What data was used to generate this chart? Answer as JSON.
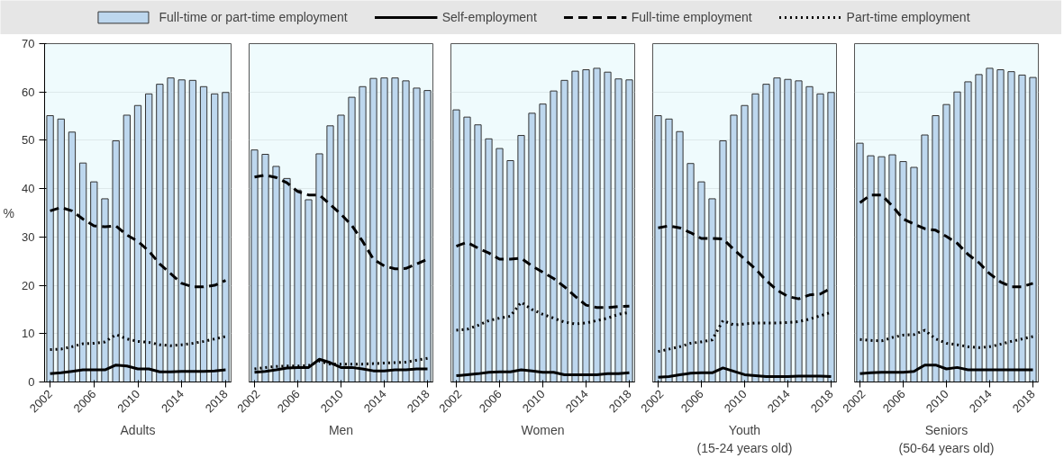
{
  "chart_data": [
    {
      "type": "bar",
      "xlabel": "Adults",
      "ylabel": "%",
      "legend": "top",
      "grid": "y",
      "xlim": [
        2001.5,
        2018.5
      ],
      "xticks": [
        2002,
        2006,
        2010,
        2014,
        2018
      ],
      "ylim": [
        0,
        70
      ],
      "yticks": [
        0,
        10,
        20,
        30,
        40,
        50,
        60,
        70
      ],
      "x": [
        2002,
        2003,
        2004,
        2005,
        2006,
        2007,
        2008,
        2009,
        2010,
        2011,
        2012,
        2013,
        2014,
        2015,
        2016,
        2017,
        2018
      ],
      "series": [
        {
          "name": "Full-time or part-time employment",
          "color": "#bdd7ee",
          "values": [
            55.1,
            54.4,
            51.7,
            45.3,
            41.4,
            37.9,
            49.9,
            55.2,
            57.2,
            59.6,
            61.6,
            62.9,
            62.5,
            62.4,
            61.1,
            59.6,
            59.9
          ]
        },
        {
          "type": "line",
          "name": "Self-employment",
          "color": "#000000",
          "line_style": "solid",
          "values": [
            1.7,
            1.9,
            2.2,
            2.5,
            2.5,
            2.5,
            3.5,
            3.3,
            2.7,
            2.7,
            2.1,
            2.1,
            2.2,
            2.2,
            2.2,
            2.3,
            2.5
          ]
        },
        {
          "type": "line",
          "name": "Full-time employment",
          "color": "#000000",
          "line_style": "dashed",
          "values": [
            35.4,
            36.1,
            35.4,
            33.7,
            32.3,
            32.1,
            32.3,
            30.4,
            29.1,
            27.1,
            24.4,
            22.4,
            20.4,
            19.7,
            19.7,
            20.0,
            21.0
          ]
        },
        {
          "type": "line",
          "name": "Part-time employment",
          "color": "#000000",
          "line_style": "dotted",
          "values": [
            6.7,
            6.8,
            7.3,
            7.9,
            8.0,
            8.3,
            9.8,
            8.9,
            8.4,
            8.2,
            7.7,
            7.5,
            7.7,
            8.0,
            8.4,
            8.9,
            9.4
          ]
        }
      ]
    },
    {
      "type": "bar",
      "xlabel": "Men",
      "grid": "y",
      "tick_labels": "x",
      "xlim": [
        2001.5,
        2018.5
      ],
      "xticks": [
        2002,
        2006,
        2010,
        2014,
        2018
      ],
      "ylim": [
        0,
        70
      ],
      "yticks": [
        0,
        10,
        20,
        30,
        40,
        50,
        60,
        70
      ],
      "x": [
        2002,
        2003,
        2004,
        2005,
        2006,
        2007,
        2008,
        2009,
        2010,
        2011,
        2012,
        2013,
        2014,
        2015,
        2016,
        2017,
        2018
      ],
      "series": [
        {
          "type": "bar",
          "color": "#bdd7ee",
          "values": [
            48.0,
            47.1,
            44.6,
            42.1,
            39.7,
            37.7,
            47.2,
            53.0,
            55.2,
            58.9,
            61.1,
            62.8,
            62.9,
            62.9,
            62.3,
            60.8,
            60.3
          ]
        },
        {
          "type": "line",
          "color": "#000000",
          "line_style": "solid",
          "values": [
            2.0,
            2.2,
            2.5,
            2.9,
            3.0,
            3.0,
            4.7,
            4.0,
            3.0,
            3.0,
            2.7,
            2.3,
            2.3,
            2.5,
            2.5,
            2.7,
            2.7
          ]
        },
        {
          "type": "line",
          "color": "#000000",
          "line_style": "dashed",
          "values": [
            42.4,
            42.8,
            42.3,
            41.2,
            39.4,
            38.7,
            38.7,
            36.7,
            34.7,
            32.4,
            29.1,
            25.4,
            24.0,
            23.4,
            23.5,
            24.4,
            25.4
          ]
        },
        {
          "type": "line",
          "color": "#000000",
          "line_style": "dotted",
          "values": [
            2.7,
            3.0,
            3.2,
            3.3,
            3.3,
            3.4,
            4.3,
            3.7,
            3.7,
            3.7,
            3.7,
            3.8,
            3.9,
            4.0,
            4.1,
            4.5,
            4.9
          ]
        }
      ]
    },
    {
      "type": "bar",
      "xlabel": "Women",
      "grid": "y",
      "tick_labels": "x",
      "xlim": [
        2001.5,
        2018.5
      ],
      "xticks": [
        2002,
        2006,
        2010,
        2014,
        2018
      ],
      "ylim": [
        0,
        70
      ],
      "yticks": [
        0,
        10,
        20,
        30,
        40,
        50,
        60,
        70
      ],
      "x": [
        2002,
        2003,
        2004,
        2005,
        2006,
        2007,
        2008,
        2009,
        2010,
        2011,
        2012,
        2013,
        2014,
        2015,
        2016,
        2017,
        2018
      ],
      "series": [
        {
          "type": "bar",
          "color": "#bdd7ee",
          "values": [
            56.3,
            54.8,
            53.2,
            50.3,
            48.3,
            45.8,
            51.0,
            55.6,
            57.5,
            60.2,
            62.4,
            64.3,
            64.6,
            64.9,
            64.1,
            62.7,
            62.5
          ]
        },
        {
          "type": "line",
          "color": "#000000",
          "line_style": "solid",
          "values": [
            1.3,
            1.5,
            1.7,
            2.0,
            2.1,
            2.1,
            2.5,
            2.3,
            2.0,
            2.0,
            1.5,
            1.5,
            1.5,
            1.5,
            1.7,
            1.7,
            1.9
          ]
        },
        {
          "type": "line",
          "color": "#000000",
          "line_style": "dashed",
          "values": [
            28.1,
            28.9,
            27.7,
            26.7,
            25.4,
            25.4,
            25.6,
            24.0,
            22.7,
            21.4,
            19.7,
            17.7,
            15.9,
            15.4,
            15.4,
            15.6,
            15.7
          ]
        },
        {
          "type": "line",
          "color": "#000000",
          "line_style": "dotted",
          "values": [
            10.7,
            10.9,
            11.7,
            12.7,
            13.2,
            13.6,
            16.5,
            15.0,
            14.0,
            13.2,
            12.4,
            12.0,
            12.2,
            12.7,
            13.2,
            14.0,
            14.4
          ]
        }
      ]
    },
    {
      "type": "bar",
      "xlabel": "Youth\n(15-24 years old)",
      "grid": "y",
      "tick_labels": "x",
      "xlim": [
        2001.5,
        2018.5
      ],
      "xticks": [
        2002,
        2006,
        2010,
        2014,
        2018
      ],
      "ylim": [
        0,
        70
      ],
      "yticks": [
        0,
        10,
        20,
        30,
        40,
        50,
        60,
        70
      ],
      "x": [
        2002,
        2003,
        2004,
        2005,
        2006,
        2007,
        2008,
        2009,
        2010,
        2011,
        2012,
        2013,
        2014,
        2015,
        2016,
        2017,
        2018
      ],
      "series": [
        {
          "type": "bar",
          "color": "#bdd7ee",
          "values": [
            55.1,
            54.4,
            51.8,
            45.2,
            41.4,
            37.9,
            49.9,
            55.2,
            57.2,
            59.6,
            61.6,
            62.9,
            62.6,
            62.3,
            61.1,
            59.6,
            59.9
          ]
        },
        {
          "type": "line",
          "color": "#000000",
          "line_style": "solid",
          "values": [
            1.0,
            1.1,
            1.5,
            1.8,
            1.9,
            1.9,
            2.9,
            2.2,
            1.5,
            1.3,
            1.1,
            1.1,
            1.1,
            1.2,
            1.2,
            1.2,
            1.1
          ]
        },
        {
          "type": "line",
          "color": "#000000",
          "line_style": "dashed",
          "values": [
            31.9,
            32.3,
            31.9,
            30.9,
            29.7,
            29.7,
            29.6,
            27.4,
            25.4,
            23.4,
            21.0,
            19.0,
            17.7,
            17.2,
            18.0,
            18.2,
            19.4
          ]
        },
        {
          "type": "line",
          "color": "#000000",
          "line_style": "dotted",
          "values": [
            6.3,
            6.8,
            7.3,
            8.0,
            8.3,
            8.7,
            12.7,
            11.8,
            12.0,
            12.2,
            12.2,
            12.2,
            12.3,
            12.5,
            13.0,
            13.7,
            14.4
          ]
        }
      ]
    },
    {
      "type": "bar",
      "xlabel": "Seniors\n(50-64 years old)",
      "grid": "y",
      "tick_labels": "x",
      "xlim": [
        2001.5,
        2018.5
      ],
      "xticks": [
        2002,
        2006,
        2010,
        2014,
        2018
      ],
      "ylim": [
        0,
        70
      ],
      "yticks": [
        0,
        10,
        20,
        30,
        40,
        50,
        60,
        70
      ],
      "x": [
        2002,
        2003,
        2004,
        2005,
        2006,
        2007,
        2008,
        2009,
        2010,
        2011,
        2012,
        2013,
        2014,
        2015,
        2016,
        2017,
        2018
      ],
      "series": [
        {
          "type": "bar",
          "color": "#bdd7ee",
          "values": [
            49.4,
            46.8,
            46.6,
            47.0,
            45.6,
            44.4,
            51.1,
            55.1,
            57.4,
            60.0,
            62.1,
            63.6,
            64.9,
            64.6,
            64.2,
            63.5,
            63.0
          ]
        },
        {
          "type": "line",
          "color": "#000000",
          "line_style": "solid",
          "values": [
            1.7,
            1.9,
            2.0,
            2.0,
            2.0,
            2.2,
            3.5,
            3.5,
            2.7,
            3.0,
            2.5,
            2.5,
            2.5,
            2.5,
            2.5,
            2.5,
            2.5
          ]
        },
        {
          "type": "line",
          "color": "#000000",
          "line_style": "dashed",
          "values": [
            37.1,
            38.7,
            38.7,
            36.4,
            33.7,
            32.7,
            31.7,
            31.4,
            30.1,
            28.7,
            26.4,
            24.7,
            22.4,
            20.7,
            19.7,
            19.7,
            20.4
          ]
        },
        {
          "type": "line",
          "color": "#000000",
          "line_style": "dotted",
          "values": [
            8.8,
            8.6,
            8.5,
            9.2,
            9.7,
            9.8,
            10.7,
            8.9,
            8.0,
            7.7,
            7.3,
            7.1,
            7.3,
            7.8,
            8.4,
            8.9,
            9.4
          ]
        }
      ]
    }
  ]
}
